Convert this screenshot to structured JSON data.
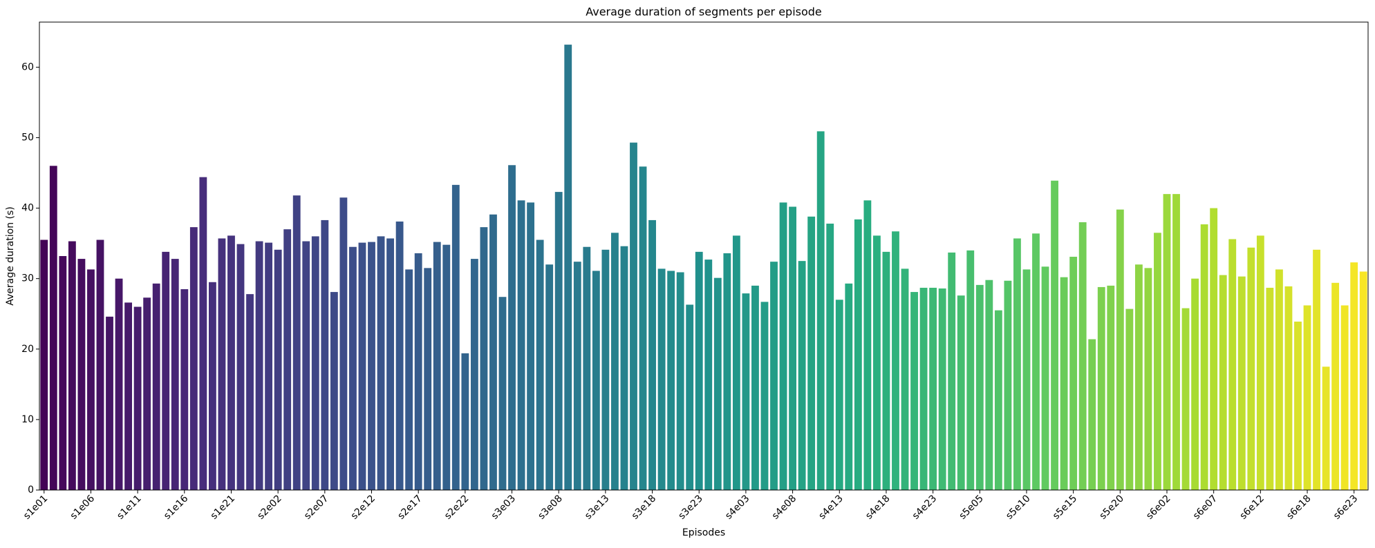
{
  "chart_data": {
    "type": "bar",
    "title": "Average duration of segments per episode",
    "x_label": "Episodes",
    "y_label": "Average duration (s)",
    "palette": "viridis",
    "categories": [
      "s1e01",
      null,
      null,
      null,
      null,
      "s1e06",
      null,
      null,
      null,
      null,
      "s1e11",
      null,
      null,
      null,
      null,
      "s1e16",
      null,
      null,
      null,
      null,
      "s1e21",
      null,
      null,
      null,
      null,
      "s2e02",
      null,
      null,
      null,
      null,
      "s2e07",
      null,
      null,
      null,
      null,
      "s2e12",
      null,
      null,
      null,
      null,
      "s2e17",
      null,
      null,
      null,
      null,
      "s2e22",
      null,
      null,
      null,
      null,
      "s3e03",
      null,
      null,
      null,
      null,
      "s3e08",
      null,
      null,
      null,
      null,
      "s3e13",
      null,
      null,
      null,
      null,
      "s3e18",
      null,
      null,
      null,
      null,
      "s3e23",
      null,
      null,
      null,
      null,
      "s4e03",
      null,
      null,
      null,
      null,
      "s4e08",
      null,
      null,
      null,
      null,
      "s4e13",
      null,
      null,
      null,
      null,
      "s4e18",
      null,
      null,
      null,
      null,
      "s4e23",
      null,
      null,
      null,
      null,
      "s5e05",
      null,
      null,
      null,
      null,
      "s5e10",
      null,
      null,
      null,
      null,
      "s5e15",
      null,
      null,
      null,
      null,
      "s5e20",
      null,
      null,
      null,
      null,
      "s6e02",
      null,
      null,
      null,
      null,
      "s6e07",
      null,
      null,
      null,
      null,
      "s6e12",
      null,
      null,
      null,
      null,
      "s6e18",
      null,
      null,
      null,
      null,
      "s6e23",
      null
    ],
    "values": [
      35.5,
      46,
      33.2,
      35.3,
      32.8,
      31.3,
      35.5,
      24.6,
      30,
      26.6,
      26,
      27.3,
      29.3,
      33.8,
      32.8,
      28.5,
      37.3,
      44.4,
      29.5,
      35.7,
      36.1,
      34.9,
      27.8,
      35.3,
      35.1,
      34.1,
      37,
      41.8,
      35.3,
      36,
      38.3,
      28.1,
      41.5,
      34.5,
      35.1,
      35.2,
      36,
      35.7,
      38.1,
      31.3,
      33.6,
      31.5,
      35.2,
      34.8,
      43.3,
      19.4,
      32.8,
      37.3,
      39.1,
      27.4,
      46.1,
      41.1,
      40.8,
      35.5,
      32,
      42.3,
      63.2,
      32.4,
      34.5,
      31.1,
      34.1,
      36.5,
      34.6,
      49.3,
      45.9,
      38.3,
      31.4,
      31.1,
      30.9,
      26.3,
      33.8,
      32.7,
      30.1,
      33.6,
      36.1,
      27.9,
      29,
      26.7,
      32.4,
      40.8,
      40.2,
      32.5,
      38.8,
      50.9,
      37.8,
      27,
      29.3,
      38.4,
      41.1,
      36.1,
      33.8,
      36.7,
      31.4,
      28.1,
      28.7,
      28.7,
      28.6,
      33.7,
      27.6,
      34,
      29.1,
      29.8,
      25.5,
      29.7,
      35.7,
      31.3,
      36.4,
      31.7,
      43.9,
      30.2,
      33.1,
      38,
      21.4,
      28.8,
      29,
      39.8,
      25.7,
      32,
      31.5,
      36.5,
      42,
      42,
      25.8,
      30,
      37.7,
      40,
      30.5,
      35.6,
      30.3,
      34.4,
      36.1,
      28.7,
      31.3,
      28.9,
      23.9,
      26.2,
      34.1,
      17.5,
      29.4,
      26.2,
      32.3,
      31
    ],
    "ylim": [
      0,
      66.4
    ],
    "yticks": [
      0,
      10,
      20,
      30,
      40,
      50,
      60
    ]
  }
}
